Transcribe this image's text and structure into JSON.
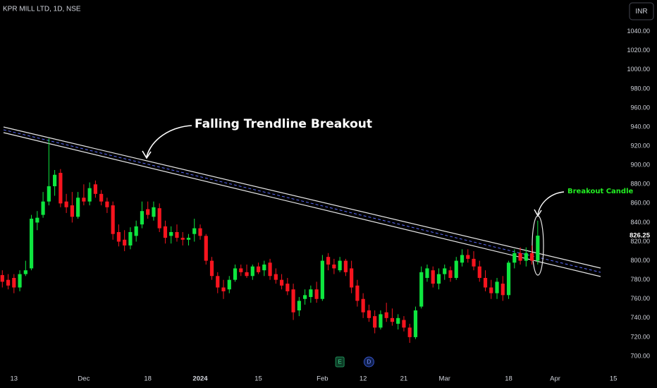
{
  "chart_data": {
    "type": "candlestick",
    "header": "KPR MILL LTD, 1D, NSE",
    "currency": "INR",
    "up_color": "#0ee63f",
    "down_color": "#f7141e",
    "ylim": [
      683,
      1073
    ],
    "yticks": [
      700,
      720,
      740,
      760,
      780,
      800,
      820,
      840,
      860,
      880,
      900,
      920,
      940,
      960,
      980,
      1000,
      1020,
      1040
    ],
    "yticks_format": {
      "decimals": 2
    },
    "xlim": [
      -0.4,
      106.8
    ],
    "xticks": [
      {
        "value": 2,
        "label": "13"
      },
      {
        "value": 14,
        "label": "Dec"
      },
      {
        "value": 25,
        "label": "18"
      },
      {
        "value": 34,
        "label": "2024"
      },
      {
        "value": 44,
        "label": "15"
      },
      {
        "value": 55,
        "label": "Feb"
      },
      {
        "value": 62,
        "label": "12"
      },
      {
        "value": 69,
        "label": "21"
      },
      {
        "value": 76,
        "label": "Mar"
      },
      {
        "value": 87,
        "label": "18"
      },
      {
        "value": 95,
        "label": "Apr"
      },
      {
        "value": 105,
        "label": "15"
      }
    ],
    "last_price": 826.25,
    "annotations": [
      "Falling Trendline Breakout",
      "Breakout Candle"
    ],
    "events": [
      {
        "label": "E",
        "x": 58
      },
      {
        "label": "D",
        "x": 63
      }
    ],
    "candles": [
      {
        "o": 785,
        "h": 790,
        "l": 772,
        "c": 778
      },
      {
        "o": 780,
        "h": 786,
        "l": 770,
        "c": 774
      },
      {
        "o": 782,
        "h": 786,
        "l": 766,
        "c": 772
      },
      {
        "o": 772,
        "h": 790,
        "l": 768,
        "c": 786
      },
      {
        "o": 786,
        "h": 800,
        "l": 784,
        "c": 790
      },
      {
        "o": 792,
        "h": 848,
        "l": 790,
        "c": 844
      },
      {
        "o": 840,
        "h": 852,
        "l": 832,
        "c": 845
      },
      {
        "o": 848,
        "h": 872,
        "l": 845,
        "c": 862
      },
      {
        "o": 862,
        "h": 928,
        "l": 858,
        "c": 878
      },
      {
        "o": 878,
        "h": 895,
        "l": 868,
        "c": 890
      },
      {
        "o": 892,
        "h": 896,
        "l": 856,
        "c": 860
      },
      {
        "o": 862,
        "h": 870,
        "l": 850,
        "c": 856
      },
      {
        "o": 858,
        "h": 872,
        "l": 840,
        "c": 846
      },
      {
        "o": 846,
        "h": 872,
        "l": 844,
        "c": 866
      },
      {
        "o": 866,
        "h": 880,
        "l": 858,
        "c": 862
      },
      {
        "o": 862,
        "h": 882,
        "l": 858,
        "c": 876
      },
      {
        "o": 880,
        "h": 884,
        "l": 866,
        "c": 870
      },
      {
        "o": 870,
        "h": 874,
        "l": 858,
        "c": 862
      },
      {
        "o": 862,
        "h": 866,
        "l": 850,
        "c": 856
      },
      {
        "o": 858,
        "h": 862,
        "l": 822,
        "c": 828
      },
      {
        "o": 830,
        "h": 838,
        "l": 815,
        "c": 820
      },
      {
        "o": 822,
        "h": 832,
        "l": 810,
        "c": 816
      },
      {
        "o": 816,
        "h": 835,
        "l": 812,
        "c": 830
      },
      {
        "o": 826,
        "h": 842,
        "l": 820,
        "c": 836
      },
      {
        "o": 838,
        "h": 862,
        "l": 834,
        "c": 852
      },
      {
        "o": 854,
        "h": 862,
        "l": 844,
        "c": 848
      },
      {
        "o": 846,
        "h": 862,
        "l": 842,
        "c": 856
      },
      {
        "o": 855,
        "h": 860,
        "l": 830,
        "c": 834
      },
      {
        "o": 836,
        "h": 842,
        "l": 818,
        "c": 824
      },
      {
        "o": 826,
        "h": 836,
        "l": 818,
        "c": 830
      },
      {
        "o": 830,
        "h": 838,
        "l": 820,
        "c": 824
      },
      {
        "o": 824,
        "h": 830,
        "l": 816,
        "c": 822
      },
      {
        "o": 822,
        "h": 828,
        "l": 816,
        "c": 824
      },
      {
        "o": 828,
        "h": 844,
        "l": 820,
        "c": 834
      },
      {
        "o": 834,
        "h": 838,
        "l": 822,
        "c": 826
      },
      {
        "o": 826,
        "h": 828,
        "l": 796,
        "c": 800
      },
      {
        "o": 800,
        "h": 804,
        "l": 780,
        "c": 784
      },
      {
        "o": 784,
        "h": 788,
        "l": 766,
        "c": 772
      },
      {
        "o": 772,
        "h": 780,
        "l": 760,
        "c": 768
      },
      {
        "o": 770,
        "h": 784,
        "l": 766,
        "c": 780
      },
      {
        "o": 780,
        "h": 796,
        "l": 778,
        "c": 792
      },
      {
        "o": 792,
        "h": 796,
        "l": 784,
        "c": 788
      },
      {
        "o": 788,
        "h": 796,
        "l": 782,
        "c": 784
      },
      {
        "o": 784,
        "h": 796,
        "l": 780,
        "c": 794
      },
      {
        "o": 794,
        "h": 798,
        "l": 786,
        "c": 788
      },
      {
        "o": 790,
        "h": 800,
        "l": 784,
        "c": 796
      },
      {
        "o": 798,
        "h": 802,
        "l": 780,
        "c": 784
      },
      {
        "o": 786,
        "h": 792,
        "l": 776,
        "c": 780
      },
      {
        "o": 780,
        "h": 786,
        "l": 770,
        "c": 774
      },
      {
        "o": 776,
        "h": 782,
        "l": 764,
        "c": 768
      },
      {
        "o": 770,
        "h": 776,
        "l": 738,
        "c": 746
      },
      {
        "o": 748,
        "h": 762,
        "l": 742,
        "c": 758
      },
      {
        "o": 760,
        "h": 770,
        "l": 754,
        "c": 764
      },
      {
        "o": 762,
        "h": 774,
        "l": 756,
        "c": 770
      },
      {
        "o": 770,
        "h": 778,
        "l": 756,
        "c": 760
      },
      {
        "o": 760,
        "h": 806,
        "l": 758,
        "c": 800
      },
      {
        "o": 804,
        "h": 808,
        "l": 790,
        "c": 796
      },
      {
        "o": 796,
        "h": 802,
        "l": 786,
        "c": 792
      },
      {
        "o": 790,
        "h": 804,
        "l": 788,
        "c": 800
      },
      {
        "o": 800,
        "h": 802,
        "l": 784,
        "c": 788
      },
      {
        "o": 792,
        "h": 800,
        "l": 766,
        "c": 772
      },
      {
        "o": 774,
        "h": 780,
        "l": 752,
        "c": 758
      },
      {
        "o": 760,
        "h": 766,
        "l": 740,
        "c": 746
      },
      {
        "o": 748,
        "h": 754,
        "l": 736,
        "c": 740
      },
      {
        "o": 742,
        "h": 748,
        "l": 724,
        "c": 730
      },
      {
        "o": 730,
        "h": 748,
        "l": 728,
        "c": 744
      },
      {
        "o": 746,
        "h": 756,
        "l": 736,
        "c": 740
      },
      {
        "o": 740,
        "h": 750,
        "l": 732,
        "c": 736
      },
      {
        "o": 734,
        "h": 744,
        "l": 728,
        "c": 740
      },
      {
        "o": 738,
        "h": 742,
        "l": 726,
        "c": 730
      },
      {
        "o": 730,
        "h": 734,
        "l": 714,
        "c": 720
      },
      {
        "o": 720,
        "h": 752,
        "l": 718,
        "c": 748
      },
      {
        "o": 752,
        "h": 794,
        "l": 750,
        "c": 788
      },
      {
        "o": 782,
        "h": 796,
        "l": 778,
        "c": 792
      },
      {
        "o": 790,
        "h": 794,
        "l": 772,
        "c": 776
      },
      {
        "o": 776,
        "h": 792,
        "l": 770,
        "c": 786
      },
      {
        "o": 786,
        "h": 796,
        "l": 780,
        "c": 792
      },
      {
        "o": 790,
        "h": 794,
        "l": 778,
        "c": 782
      },
      {
        "o": 782,
        "h": 804,
        "l": 780,
        "c": 800
      },
      {
        "o": 798,
        "h": 812,
        "l": 794,
        "c": 806
      },
      {
        "o": 806,
        "h": 812,
        "l": 798,
        "c": 802
      },
      {
        "o": 802,
        "h": 810,
        "l": 790,
        "c": 794
      },
      {
        "o": 794,
        "h": 800,
        "l": 778,
        "c": 782
      },
      {
        "o": 782,
        "h": 790,
        "l": 768,
        "c": 772
      },
      {
        "o": 772,
        "h": 780,
        "l": 760,
        "c": 766
      },
      {
        "o": 766,
        "h": 782,
        "l": 760,
        "c": 778
      },
      {
        "o": 776,
        "h": 784,
        "l": 758,
        "c": 764
      },
      {
        "o": 764,
        "h": 800,
        "l": 760,
        "c": 798
      },
      {
        "o": 798,
        "h": 812,
        "l": 792,
        "c": 808
      },
      {
        "o": 808,
        "h": 814,
        "l": 796,
        "c": 800
      },
      {
        "o": 800,
        "h": 814,
        "l": 794,
        "c": 808
      },
      {
        "o": 808,
        "h": 816,
        "l": 796,
        "c": 800
      },
      {
        "o": 800,
        "h": 842,
        "l": 796,
        "c": 826.25
      }
    ]
  }
}
